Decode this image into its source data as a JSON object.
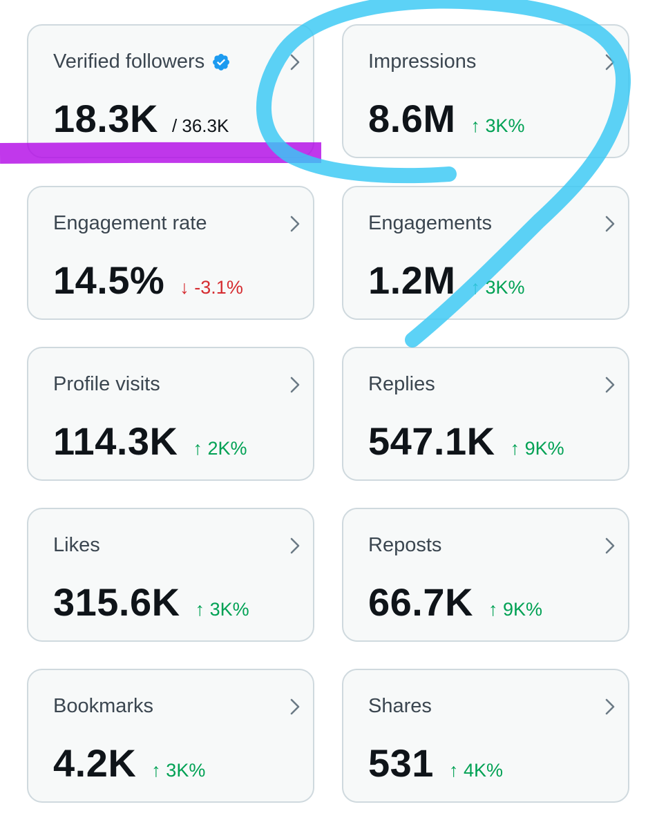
{
  "cards": [
    {
      "label": "Verified followers",
      "value": "18.3K",
      "total": "/ 36.3K",
      "change": "",
      "direction": "none",
      "verified_badge": true
    },
    {
      "label": "Impressions",
      "value": "8.6M",
      "change": "↑ 3K%",
      "direction": "up"
    },
    {
      "label": "Engagement rate",
      "value": "14.5%",
      "change": "↓ -3.1%",
      "direction": "down"
    },
    {
      "label": "Engagements",
      "value": "1.2M",
      "change": "↑ 3K%",
      "direction": "up"
    },
    {
      "label": "Profile visits",
      "value": "114.3K",
      "change": "↑ 2K%",
      "direction": "up"
    },
    {
      "label": "Replies",
      "value": "547.1K",
      "change": "↑ 9K%",
      "direction": "up"
    },
    {
      "label": "Likes",
      "value": "315.6K",
      "change": "↑ 3K%",
      "direction": "up"
    },
    {
      "label": "Reposts",
      "value": "66.7K",
      "change": "↑ 9K%",
      "direction": "up"
    },
    {
      "label": "Bookmarks",
      "value": "4.2K",
      "change": "↑ 3K%",
      "direction": "up"
    },
    {
      "label": "Shares",
      "value": "531",
      "change": "↑ 4K%",
      "direction": "up"
    }
  ],
  "icons": {
    "verified": "verified-badge-icon",
    "chevron": "chevron-right-icon"
  },
  "colors": {
    "card_bg": "#f7f9f9",
    "card_border": "#cfd9de",
    "verified_blue": "#1d9bf0",
    "up_green": "#00a154",
    "down_red": "#d52c30",
    "purple_marker": "#b000e6",
    "blue_marker": "#38c8f4"
  }
}
